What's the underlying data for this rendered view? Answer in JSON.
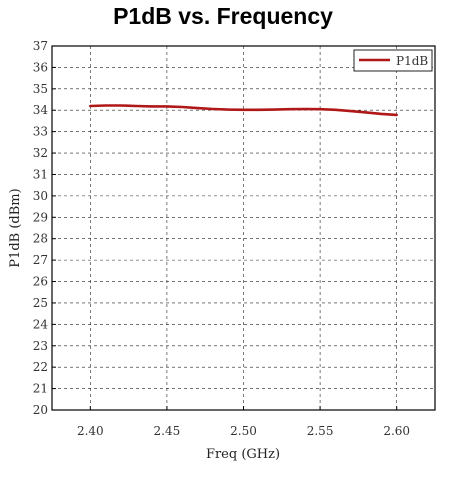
{
  "chart_data": {
    "type": "line",
    "title": "P1dB vs. Frequency",
    "xlabel": "Freq (GHz)",
    "ylabel": "P1dB (dBm)",
    "xlim": [
      2.375,
      2.625
    ],
    "ylim": [
      20,
      37
    ],
    "x_ticks": [
      "2.40",
      "2.45",
      "2.50",
      "2.55",
      "2.60"
    ],
    "x_tick_values": [
      2.4,
      2.45,
      2.5,
      2.55,
      2.6
    ],
    "y_ticks": [
      "20",
      "21",
      "22",
      "23",
      "24",
      "25",
      "26",
      "27",
      "28",
      "29",
      "30",
      "31",
      "32",
      "33",
      "34",
      "35",
      "36",
      "37"
    ],
    "y_tick_values": [
      20,
      21,
      22,
      23,
      24,
      25,
      26,
      27,
      28,
      29,
      30,
      31,
      32,
      33,
      34,
      35,
      36,
      37
    ],
    "grid": true,
    "legend": "top-right",
    "series": [
      {
        "name": "P1dB",
        "color": "#b01818",
        "x": [
          2.4,
          2.41,
          2.42,
          2.43,
          2.44,
          2.45,
          2.46,
          2.47,
          2.48,
          2.49,
          2.5,
          2.51,
          2.52,
          2.53,
          2.54,
          2.55,
          2.56,
          2.57,
          2.58,
          2.59,
          2.6
        ],
        "y": [
          34.2,
          34.22,
          34.22,
          34.2,
          34.18,
          34.18,
          34.15,
          34.1,
          34.06,
          34.03,
          34.02,
          34.02,
          34.03,
          34.05,
          34.06,
          34.05,
          34.02,
          33.96,
          33.9,
          33.83,
          33.78
        ]
      }
    ]
  }
}
